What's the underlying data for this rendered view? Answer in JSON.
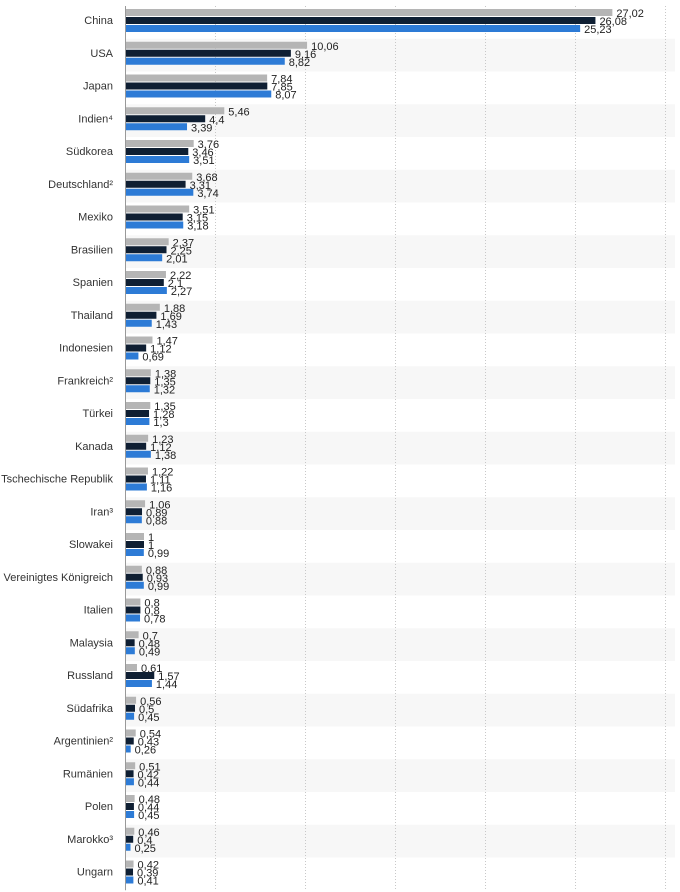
{
  "chart_data": {
    "type": "bar",
    "orientation": "horizontal",
    "categories": [
      "China",
      "USA",
      "Japan",
      "Indien⁴",
      "Südkorea",
      "Deutschland²",
      "Mexiko",
      "Brasilien",
      "Spanien",
      "Thailand",
      "Indonesien",
      "Frankreich²",
      "Türkei",
      "Kanada",
      "Tschechische Republik",
      "Iran³",
      "Slowakei",
      "Vereinigtes Königreich",
      "Italien",
      "Malaysia",
      "Russland",
      "Südafrika",
      "Argentinien²",
      "Rumänien",
      "Polen",
      "Marokko³",
      "Ungarn"
    ],
    "series": [
      {
        "values": [
          27.02,
          10.06,
          7.84,
          5.46,
          3.76,
          3.68,
          3.51,
          2.37,
          2.22,
          1.88,
          1.47,
          1.38,
          1.35,
          1.23,
          1.22,
          1.06,
          1,
          0.88,
          0.8,
          0.7,
          0.61,
          0.56,
          0.54,
          0.51,
          0.48,
          0.46,
          0.42
        ]
      },
      {
        "values": [
          26.08,
          9.16,
          7.85,
          4.4,
          3.46,
          3.31,
          3.15,
          2.25,
          2.1,
          1.69,
          1.12,
          1.35,
          1.28,
          1.12,
          1.11,
          0.89,
          1,
          0.93,
          0.8,
          0.48,
          1.57,
          0.5,
          0.43,
          0.42,
          0.44,
          0.4,
          0.39
        ]
      },
      {
        "values": [
          25.23,
          8.82,
          8.07,
          3.39,
          3.51,
          3.74,
          3.18,
          2.01,
          2.27,
          1.43,
          0.69,
          1.32,
          1.3,
          1.38,
          1.16,
          0.88,
          0.99,
          0.99,
          0.78,
          0.49,
          1.44,
          0.45,
          0.26,
          0.44,
          0.45,
          0.25,
          0.41
        ]
      }
    ],
    "value_labels": [
      [
        "27,02",
        "10,06",
        "7,84",
        "5,46",
        "3,76",
        "3,68",
        "3,51",
        "2,37",
        "2,22",
        "1,88",
        "1,47",
        "1,38",
        "1,35",
        "1,23",
        "1,22",
        "1,06",
        "1",
        "0,88",
        "0,8",
        "0,7",
        "0,61",
        "0,56",
        "0,54",
        "0,51",
        "0,48",
        "0,46",
        "0,42"
      ],
      [
        "26,08",
        "9,16",
        "7,85",
        "4,4",
        "3,46",
        "3,31",
        "3,15",
        "2,25",
        "2,1",
        "1,69",
        "1,12",
        "1,35",
        "1,28",
        "1,12",
        "1,11",
        "0,89",
        "1",
        "0,93",
        "0,8",
        "0,48",
        "1,57",
        "0,5",
        "0,43",
        "0,42",
        "0,44",
        "0,4",
        "0,39"
      ],
      [
        "25,23",
        "8,82",
        "8,07",
        "3,39",
        "3,51",
        "3,74",
        "3,18",
        "2,01",
        "2,27",
        "1,43",
        "0,69",
        "1,32",
        "1,3",
        "1,38",
        "1,16",
        "0,88",
        "0,99",
        "0,99",
        "0,78",
        "0,49",
        "1,44",
        "0,45",
        "0,26",
        "0,44",
        "0,45",
        "0,25",
        "0,41"
      ]
    ],
    "xlim": [
      0,
      30
    ],
    "x_gridlines": [
      5,
      10,
      15,
      20,
      25,
      30
    ],
    "grid": true,
    "legend": "none",
    "series_colors": [
      "#b5b5b5",
      "#0f1f33",
      "#2d7bd6"
    ],
    "row_band_color": "#f7f7f7"
  }
}
